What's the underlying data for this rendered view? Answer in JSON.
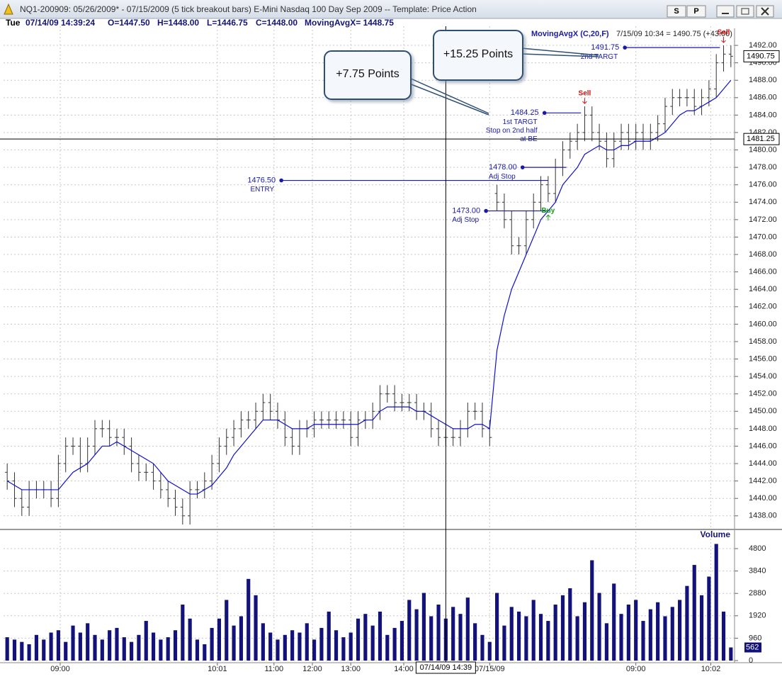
{
  "window": {
    "title": "NQ1-200909:  05/26/2009* - 07/15/2009  (5 tick breakout bars)   E-Mini Nasdaq 100 Day Sep 2009  --  Template: Price Action",
    "buttons": [
      "S",
      "P"
    ]
  },
  "info_bar": {
    "day": "Tue",
    "timestamp": "07/14/09 14:39:24",
    "open": "O=1447.50",
    "high": "H=1448.00",
    "low": "L=1446.75",
    "close": "C=1448.00",
    "indicator": "MovingAvgX= 1448.75"
  },
  "chart_data": [
    {
      "type": "ohlc",
      "color": "#333333",
      "grid": true,
      "xlim": [
        -0.5,
        99.5
      ],
      "ylim": [
        1436.6,
        1494.2
      ],
      "yticks": [
        {
          "value": 1438,
          "label": "1438.00"
        },
        {
          "value": 1440,
          "label": "1440.00"
        },
        {
          "value": 1442,
          "label": "1442.00"
        },
        {
          "value": 1444,
          "label": "1444.00"
        },
        {
          "value": 1446,
          "label": "1446.00"
        },
        {
          "value": 1448,
          "label": "1448.00"
        },
        {
          "value": 1450,
          "label": "1450.00"
        },
        {
          "value": 1452,
          "label": "1452.00"
        },
        {
          "value": 1454,
          "label": "1454.00"
        },
        {
          "value": 1456,
          "label": "1456.00"
        },
        {
          "value": 1458,
          "label": "1458.00"
        },
        {
          "value": 1460,
          "label": "1460.00"
        },
        {
          "value": 1462,
          "label": "1462.00"
        },
        {
          "value": 1464,
          "label": "1464.00"
        },
        {
          "value": 1466,
          "label": "1466.00"
        },
        {
          "value": 1468,
          "label": "1468.00"
        },
        {
          "value": 1470,
          "label": "1470.00"
        },
        {
          "value": 1472,
          "label": "1472.00"
        },
        {
          "value": 1474,
          "label": "1474.00"
        },
        {
          "value": 1476,
          "label": "1476.00"
        },
        {
          "value": 1478,
          "label": "1478.00"
        },
        {
          "value": 1480,
          "label": "1480.00"
        },
        {
          "value": 1482,
          "label": "1482.00"
        },
        {
          "value": 1484,
          "label": "1484.00"
        },
        {
          "value": 1486,
          "label": "1486.00"
        },
        {
          "value": 1488,
          "label": "1488.00"
        },
        {
          "value": 1490,
          "label": "1490.00"
        },
        {
          "value": 1492,
          "label": "1492.00"
        }
      ],
      "open": [
        1443,
        1442,
        1440,
        1439,
        1441,
        1441,
        1441,
        1440,
        1444,
        1446,
        1446,
        1444,
        1446,
        1448,
        1448,
        1447,
        1447,
        1446,
        1444,
        1443,
        1443,
        1442,
        1441,
        1440,
        1439,
        1438,
        1441,
        1441,
        1442,
        1444,
        1446,
        1447,
        1448,
        1449,
        1449,
        1450,
        1451,
        1450,
        1449,
        1447,
        1446,
        1448,
        1448,
        1449,
        1449,
        1449,
        1449,
        1449,
        1447,
        1449,
        1449,
        1450,
        1452,
        1452,
        1451,
        1451,
        1451,
        1450,
        1450,
        1448,
        1447,
        1447,
        1447,
        1448,
        1450,
        1450,
        1448,
        1475,
        1474,
        1472,
        1469,
        1469,
        1472,
        1474,
        1476,
        1475,
        1478,
        1480,
        1481,
        1482,
        1484,
        1482,
        1481,
        1479,
        1481,
        1482,
        1481,
        1482,
        1481,
        1482,
        1483,
        1485,
        1486,
        1486,
        1486,
        1485,
        1486,
        1487,
        1490,
        1491
      ],
      "high": [
        1444,
        1443,
        1441,
        1442,
        1442,
        1442,
        1442,
        1445,
        1447,
        1447,
        1447,
        1447,
        1449,
        1449,
        1449,
        1448,
        1448,
        1447,
        1445,
        1444,
        1444,
        1443,
        1442,
        1441,
        1440,
        1442,
        1442,
        1443,
        1445,
        1447,
        1448,
        1449,
        1450,
        1450,
        1451,
        1452,
        1452,
        1451,
        1450,
        1448,
        1449,
        1449,
        1450,
        1450,
        1450,
        1450,
        1450,
        1450,
        1450,
        1450,
        1451,
        1453,
        1453,
        1453,
        1452,
        1452,
        1452,
        1451,
        1451,
        1449,
        1448,
        1448,
        1449,
        1451,
        1451,
        1451,
        1449,
        1476,
        1475,
        1473,
        1470,
        1473,
        1475,
        1477,
        1477,
        1479,
        1481,
        1482,
        1483,
        1485,
        1485,
        1483,
        1482,
        1482,
        1483,
        1483,
        1483,
        1483,
        1483,
        1484,
        1486,
        1487,
        1487,
        1487,
        1487,
        1487,
        1488,
        1491,
        1492,
        1492
      ],
      "low": [
        1441,
        1439,
        1438,
        1438,
        1440,
        1440,
        1439,
        1439,
        1443,
        1445,
        1443,
        1443,
        1445,
        1447,
        1446,
        1446,
        1445,
        1443,
        1442,
        1442,
        1441,
        1440,
        1439,
        1438,
        1437,
        1437,
        1440,
        1440,
        1441,
        1443,
        1445,
        1446,
        1447,
        1448,
        1448,
        1449,
        1449,
        1448,
        1446,
        1445,
        1445,
        1447,
        1447,
        1448,
        1448,
        1448,
        1448,
        1446,
        1446,
        1448,
        1448,
        1449,
        1451,
        1450,
        1450,
        1450,
        1449,
        1449,
        1447,
        1446,
        1446,
        1446,
        1446,
        1447,
        1449,
        1447,
        1446,
        1473,
        1471,
        1468,
        1468,
        1468,
        1471,
        1473,
        1474,
        1474,
        1477,
        1479,
        1480,
        1481,
        1481,
        1480,
        1478,
        1478,
        1480,
        1480,
        1480,
        1480,
        1480,
        1481,
        1482,
        1484,
        1485,
        1485,
        1484,
        1484,
        1485,
        1486,
        1489,
        1489.5
      ],
      "close": [
        1442,
        1440,
        1439,
        1441,
        1441,
        1441,
        1440,
        1444,
        1446,
        1446,
        1444,
        1446,
        1448,
        1448,
        1447,
        1447,
        1446,
        1444,
        1443,
        1443,
        1442,
        1441,
        1440,
        1439,
        1438,
        1441,
        1441,
        1442,
        1444,
        1446,
        1447,
        1448,
        1449,
        1449,
        1450,
        1451,
        1450,
        1449,
        1447,
        1446,
        1448,
        1448,
        1449,
        1449,
        1449,
        1449,
        1449,
        1447,
        1449,
        1449,
        1450,
        1452,
        1452,
        1451,
        1451,
        1451,
        1450,
        1450,
        1448,
        1447,
        1447,
        1447,
        1448,
        1450,
        1450,
        1448,
        1447,
        1474,
        1472,
        1469,
        1469,
        1472,
        1474,
        1476,
        1475,
        1478,
        1480,
        1481,
        1482,
        1484,
        1482,
        1481,
        1479,
        1481,
        1482,
        1481,
        1482,
        1481,
        1482,
        1483,
        1485,
        1486,
        1486,
        1486,
        1485,
        1486,
        1487,
        1490,
        1491,
        1490.75
      ],
      "moving_average": {
        "name": "MovingAvgX (C,20,F)",
        "status": "7/15/09 10:34 = 1490.75 (+43.00)",
        "color": "#1010d0",
        "values": [
          1442,
          1441.5,
          1441,
          1441,
          1441,
          1441,
          1441,
          1441,
          1442,
          1443,
          1443.5,
          1444,
          1445,
          1446,
          1446,
          1446.5,
          1446,
          1445.5,
          1445,
          1444.5,
          1444,
          1443,
          1442,
          1441.5,
          1441,
          1440.5,
          1440.5,
          1441,
          1441.5,
          1442.5,
          1443.5,
          1445,
          1446,
          1447,
          1448,
          1449,
          1449,
          1449,
          1448.5,
          1448,
          1448,
          1448,
          1448.5,
          1448.5,
          1448.5,
          1448.5,
          1448.5,
          1448.5,
          1448.5,
          1449,
          1449,
          1450,
          1450.5,
          1450.5,
          1450.5,
          1450.5,
          1450,
          1450,
          1449.5,
          1449,
          1448.5,
          1448,
          1448,
          1448,
          1448.5,
          1448.5,
          1448,
          1457,
          1461,
          1464,
          1466,
          1468,
          1470,
          1472,
          1473,
          1474,
          1476,
          1477,
          1478,
          1479.5,
          1480,
          1480.5,
          1480,
          1480,
          1480.5,
          1480.5,
          1481,
          1481,
          1481,
          1481.5,
          1482,
          1483,
          1484,
          1484.5,
          1484.5,
          1485,
          1485.5,
          1486,
          1487,
          1488
        ]
      },
      "levels": [
        {
          "price": {
            "value": 1476.5,
            "label": "1476.50"
          },
          "notes": [
            "ENTRY"
          ],
          "x": [
            37.5,
            74
          ]
        },
        {
          "price": {
            "value": 1473,
            "label": "1473.00"
          },
          "notes": [
            "Adj Stop"
          ],
          "x": [
            65.5,
            74
          ]
        },
        {
          "price": {
            "value": 1478,
            "label": "1478.00"
          },
          "notes": [
            "Adj Stop"
          ],
          "x": [
            70.5,
            76.5
          ]
        },
        {
          "price": 1484.25,
          "notes": [
            "1st TARGT",
            "Stop on 2nd half",
            "at BE"
          ],
          "x": [
            73.5,
            78.5
          ]
        },
        {
          "price": 1491.75,
          "notes": [
            "2nd TARGT"
          ],
          "x": [
            84.5,
            97.5
          ]
        }
      ],
      "level_color": "#1a1aa8",
      "signals": [
        {
          "label": "Buy",
          "x": 74,
          "color": "#10a010",
          "position": "below"
        },
        {
          "label": "Sell",
          "x": 79,
          "color": "#dd1010",
          "position": "above"
        },
        {
          "label": "Sell",
          "x": 98,
          "color": "#dd1010",
          "position": "above"
        }
      ],
      "crosshair": {
        "x": 60,
        "price": 1481.25,
        "time": "07/14/09 14:39"
      },
      "annotations": [
        "+7.75 Points",
        "+15.25 Points"
      ]
    },
    {
      "type": "bar",
      "title": "Volume",
      "color": "#12127a",
      "grid": true,
      "xlim": [
        -0.5,
        99.5
      ],
      "ylim": [
        0,
        5530
      ],
      "yticks": [
        0,
        960,
        1920,
        2880,
        3840,
        4800
      ],
      "xticks": [
        {
          "value": 7.25,
          "label": "09:00"
        },
        {
          "value": 28.75,
          "label": "10:01"
        },
        {
          "value": 36.5,
          "label": "11:00"
        },
        {
          "value": 41.75,
          "label": "12:00"
        },
        {
          "value": 47,
          "label": "13:00"
        },
        {
          "value": 54.25,
          "label": "14:00"
        },
        {
          "value": 66,
          "label": "07/15/09"
        },
        {
          "value": 86,
          "label": "09:00"
        },
        {
          "value": 96.25,
          "label": "10:02"
        }
      ],
      "values": [
        1000,
        900,
        800,
        700,
        1100,
        900,
        1200,
        1300,
        800,
        1500,
        1200,
        1600,
        1100,
        900,
        1300,
        1400,
        1000,
        800,
        1100,
        1700,
        1200,
        900,
        1000,
        1300,
        2400,
        1800,
        900,
        700,
        1400,
        1800,
        2600,
        1500,
        1900,
        3500,
        2800,
        1600,
        1200,
        900,
        1100,
        1300,
        1200,
        1600,
        900,
        1400,
        2100,
        1300,
        1000,
        1200,
        1800,
        2000,
        1500,
        2100,
        1100,
        1400,
        1700,
        2600,
        2200,
        2900,
        1900,
        2400,
        1800,
        2300,
        2000,
        2700,
        1600,
        1100,
        800,
        2900,
        1500,
        2300,
        2100,
        1900,
        2600,
        2000,
        1700,
        2400,
        2800,
        3100,
        1900,
        2500,
        4300,
        2900,
        1600,
        3300,
        2000,
        2400,
        2600,
        1700,
        2200,
        2500,
        1900,
        2300,
        2600,
        3200,
        4100,
        2800,
        3600,
        5000,
        2100,
        562
      ]
    }
  ]
}
